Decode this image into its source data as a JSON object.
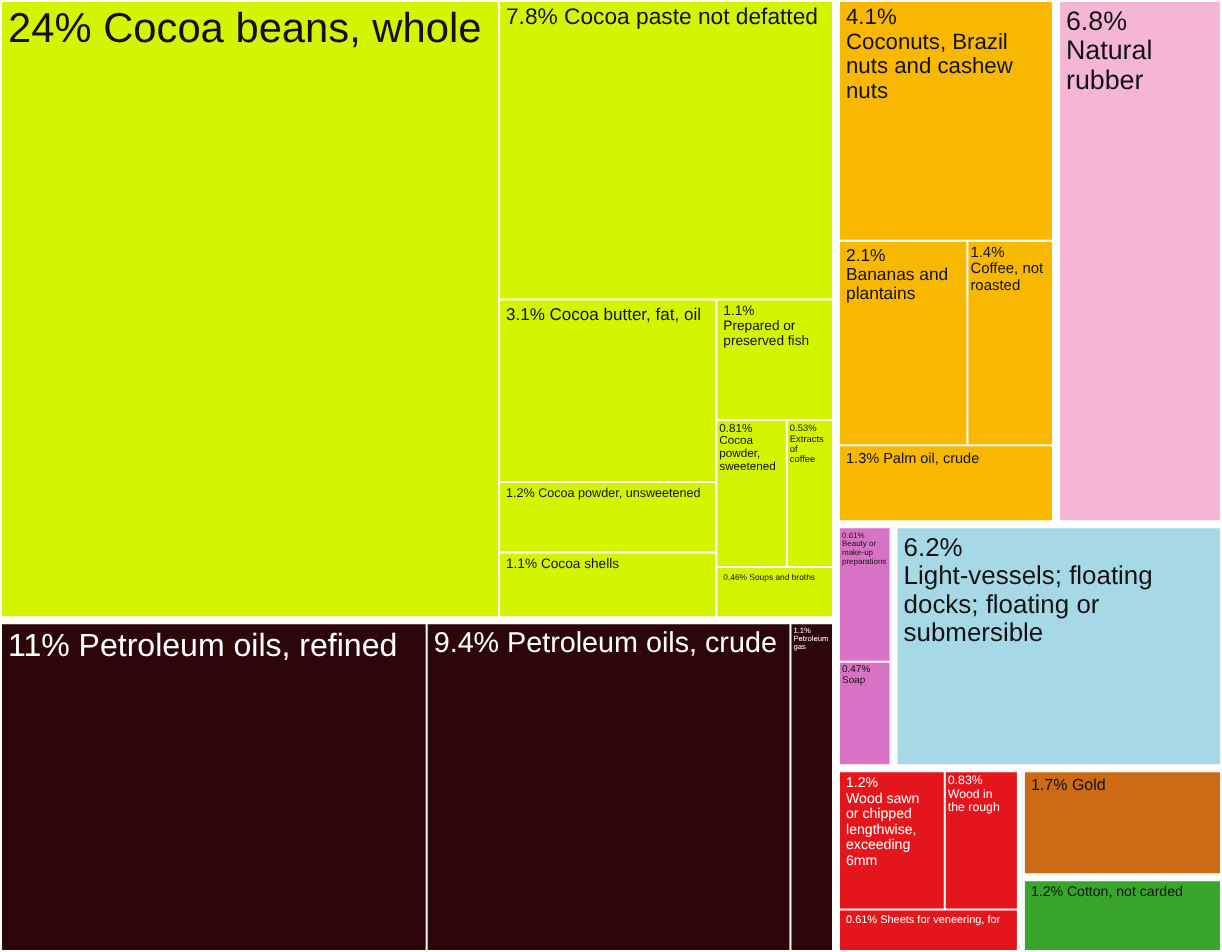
{
  "chart_data": {
    "type": "other",
    "categories": [
      "Cocoa beans, whole",
      "Cocoa paste not defatted",
      "Cocoa butter, fat, oil",
      "Cocoa powder, unsweetened",
      "Cocoa shells",
      "Prepared or preserved fish",
      "Cocoa powder, sweetened",
      "Extracts of coffee",
      "Soups and broths",
      "Petroleum oils, refined",
      "Petroleum oils, crude",
      "Petroleum gas",
      "Coconuts, Brazil nuts and cashew nuts",
      "Bananas and plantains",
      "Coffee, not roasted",
      "Palm oil, crude",
      "Natural rubber",
      "Beauty or make-up preparations",
      "Soap",
      "Light-vessels; floating docks; floating or submersible",
      "Wood sawn or chipped lengthwise, exceeding 6mm",
      "Wood in the rough",
      "Sheets for veneering, for",
      "Gold",
      "Cotton, not carded"
    ],
    "values": [
      24,
      7.8,
      3.1,
      1.2,
      1.1,
      1.1,
      0.81,
      0.53,
      0.46,
      11,
      9.4,
      1.1,
      4.1,
      2.1,
      1.4,
      1.3,
      6.8,
      0.61,
      0.47,
      6.2,
      1.2,
      0.83,
      0.61,
      1.7,
      1.2
    ],
    "value_labels": [
      "24%",
      "7.8%",
      "3.1%",
      "1.2%",
      "1.1%",
      "1.1%",
      "0.81%",
      "0.53%",
      "0.46%",
      "11%",
      "9.4%",
      "1.1%",
      "4.1%",
      "2.1%",
      "1.4%",
      "1.3%",
      "6.8%",
      "0.61%",
      "0.47%",
      "6.2%",
      "1.2%",
      "0.83%",
      "0.61%",
      "1.7%",
      "1.2%"
    ],
    "colors": [
      "#d4f500",
      "#d4f500",
      "#d4f500",
      "#d4f500",
      "#d4f500",
      "#d4f500",
      "#d4f500",
      "#d4f500",
      "#d4f500",
      "#2d0608",
      "#2d0608",
      "#2d0608",
      "#f8b800",
      "#f8b800",
      "#f8b800",
      "#f8b800",
      "#f5b6d6",
      "#d872c4",
      "#d872c4",
      "#a6d8e6",
      "#e4161c",
      "#e4161c",
      "#e4161c",
      "#cc6a16",
      "#3aa52c"
    ]
  }
}
